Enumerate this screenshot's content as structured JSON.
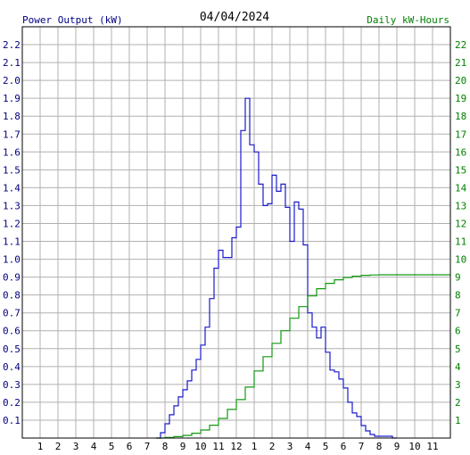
{
  "chart_data": {
    "type": "line",
    "title": "04/04/2024",
    "left_axis_label": "Power Output (kW)",
    "right_axis_label": "Daily kW-Hours",
    "x_ticks": [
      "1",
      "2",
      "3",
      "4",
      "5",
      "6",
      "7",
      "8",
      "9",
      "10",
      "11",
      "12",
      "1",
      "2",
      "3",
      "4",
      "5",
      "6",
      "7",
      "8",
      "9",
      "10",
      "11"
    ],
    "x_range_hours": [
      0,
      24
    ],
    "left_ticks": [
      "0.1",
      "0.2",
      "0.3",
      "0.4",
      "0.5",
      "0.6",
      "0.7",
      "0.8",
      "0.9",
      "1.0",
      "1.1",
      "1.2",
      "1.3",
      "1.4",
      "1.5",
      "1.6",
      "1.7",
      "1.8",
      "1.9",
      "2.0",
      "2.1",
      "2.2"
    ],
    "left_range": [
      0,
      2.3
    ],
    "right_ticks": [
      "1",
      "2",
      "3",
      "4",
      "5",
      "6",
      "7",
      "8",
      "9",
      "10",
      "11",
      "12",
      "13",
      "14",
      "15",
      "16",
      "17",
      "18",
      "19",
      "20",
      "21",
      "22"
    ],
    "right_range": [
      0,
      23
    ],
    "grid": true,
    "colors": {
      "power": "#1a1acc",
      "energy": "#119911",
      "left_axis": "#000080",
      "right_axis": "#008000",
      "grid": "#b0b0b0"
    },
    "series": [
      {
        "name": "Power Output (kW)",
        "axis": "left",
        "x": [
          7.5,
          7.75,
          8.0,
          8.25,
          8.5,
          8.75,
          9.0,
          9.25,
          9.5,
          9.75,
          10.0,
          10.25,
          10.5,
          10.75,
          11.0,
          11.25,
          11.5,
          11.75,
          12.0,
          12.25,
          12.5,
          12.75,
          13.0,
          13.25,
          13.5,
          13.75,
          14.0,
          14.25,
          14.5,
          14.75,
          15.0,
          15.25,
          15.5,
          15.75,
          16.0,
          16.25,
          16.5,
          16.75,
          17.0,
          17.25,
          17.5,
          17.75,
          18.0,
          18.25,
          18.5,
          18.75,
          19.0,
          19.25,
          19.5,
          19.75,
          20.0,
          20.25,
          20.5,
          20.75,
          21.0
        ],
        "y": [
          0.0,
          0.03,
          0.08,
          0.13,
          0.18,
          0.23,
          0.27,
          0.32,
          0.38,
          0.44,
          0.52,
          0.62,
          0.78,
          0.95,
          1.05,
          1.01,
          1.01,
          1.12,
          1.18,
          1.72,
          1.9,
          1.64,
          1.6,
          1.42,
          1.3,
          1.31,
          1.47,
          1.38,
          1.42,
          1.29,
          1.1,
          1.32,
          1.28,
          1.08,
          0.7,
          0.62,
          0.56,
          0.62,
          0.48,
          0.38,
          0.37,
          0.33,
          0.28,
          0.2,
          0.14,
          0.12,
          0.07,
          0.04,
          0.02,
          0.01,
          0.01,
          0.01,
          0.01,
          0.0,
          0.0
        ]
      },
      {
        "name": "Daily kW-Hours",
        "axis": "right",
        "x": [
          7.5,
          8.0,
          8.5,
          9.0,
          9.5,
          10.0,
          10.5,
          11.0,
          11.5,
          12.0,
          12.5,
          13.0,
          13.5,
          14.0,
          14.5,
          15.0,
          15.5,
          16.0,
          16.5,
          17.0,
          17.5,
          18.0,
          18.5,
          19.0,
          19.5,
          20.0,
          21.0,
          22.0,
          23.0,
          24.0
        ],
        "y": [
          0.0,
          0.03,
          0.08,
          0.15,
          0.27,
          0.45,
          0.72,
          1.1,
          1.6,
          2.15,
          2.85,
          3.75,
          4.55,
          5.3,
          6.0,
          6.7,
          7.35,
          7.95,
          8.35,
          8.65,
          8.85,
          8.98,
          9.05,
          9.1,
          9.12,
          9.13,
          9.13,
          9.13,
          9.13,
          9.13
        ]
      }
    ]
  }
}
